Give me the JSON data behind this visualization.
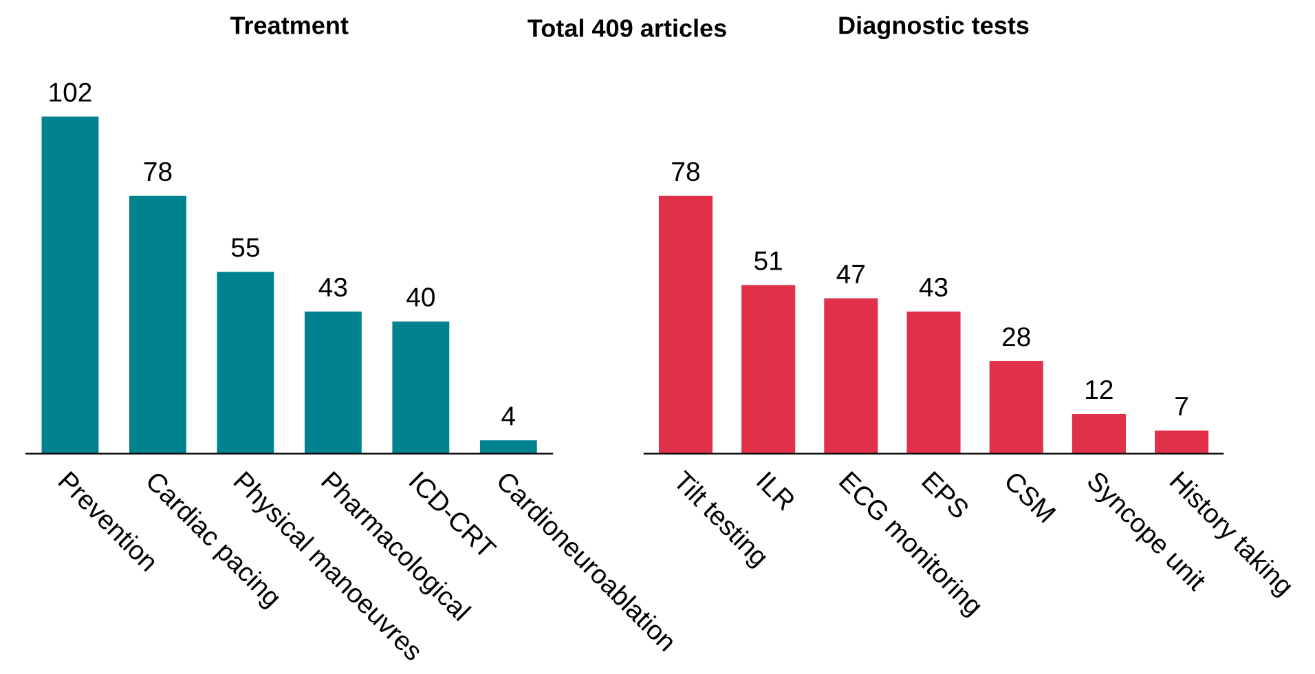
{
  "chart_data": [
    {
      "type": "bar",
      "title": "Treatment",
      "annotations": [
        "Total 409 articles"
      ],
      "categories": [
        "Prevention",
        "Cardiac pacing",
        "Physical manoeuvres",
        "Pharmacological",
        "ICD-CRT",
        "Cardioneuroablation"
      ],
      "values": [
        102,
        78,
        55,
        43,
        40,
        4
      ],
      "color": "#00838f",
      "data_labels": true,
      "tick_labels": "x",
      "grid": false,
      "legend": false
    },
    {
      "type": "bar",
      "title": "Diagnostic tests",
      "categories": [
        "Tilt testing",
        "ILR",
        "ECG monitoring",
        "EPS",
        "CSM",
        "Syncope unit",
        "History taking"
      ],
      "values": [
        78,
        51,
        47,
        43,
        28,
        12,
        7
      ],
      "color": "#e0304a",
      "data_labels": true,
      "tick_labels": "x",
      "grid": false,
      "legend": false
    }
  ]
}
